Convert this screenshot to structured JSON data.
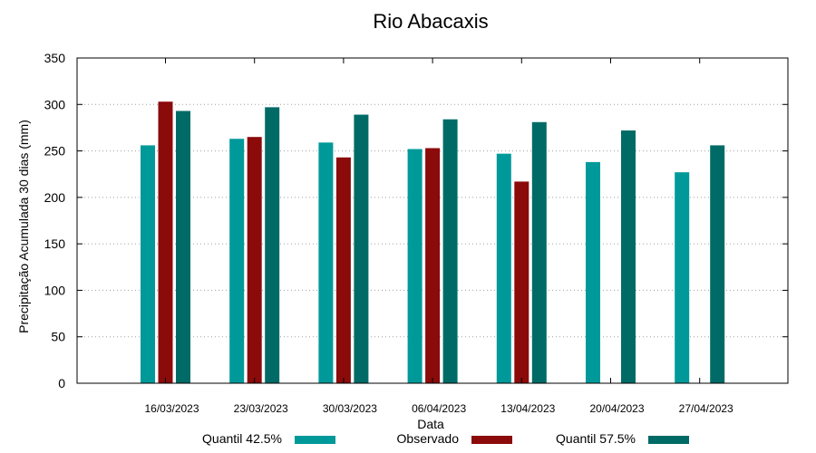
{
  "chart_data": {
    "type": "bar",
    "title": "Rio Abacaxis",
    "xlabel": "Data",
    "ylabel": "Precipitação Acumulada 30 dias (mm)",
    "ylim": [
      0,
      350
    ],
    "yticks": [
      0,
      50,
      100,
      150,
      200,
      250,
      300,
      350
    ],
    "grid": true,
    "legend_position": "bottom",
    "categories": [
      "16/03/2023",
      "23/03/2023",
      "30/03/2023",
      "06/04/2023",
      "13/04/2023",
      "20/04/2023",
      "27/04/2023"
    ],
    "series": [
      {
        "name": "Quantil 42.5%",
        "color": "#009999",
        "values": [
          256,
          263,
          259,
          252,
          247,
          238,
          227
        ]
      },
      {
        "name": "Observado",
        "color": "#8b0a0a",
        "values": [
          303,
          265,
          243,
          253,
          217,
          null,
          null
        ]
      },
      {
        "name": "Quantil 57.5%",
        "color": "#006b66",
        "values": [
          293,
          297,
          289,
          284,
          281,
          272,
          256
        ]
      }
    ]
  }
}
